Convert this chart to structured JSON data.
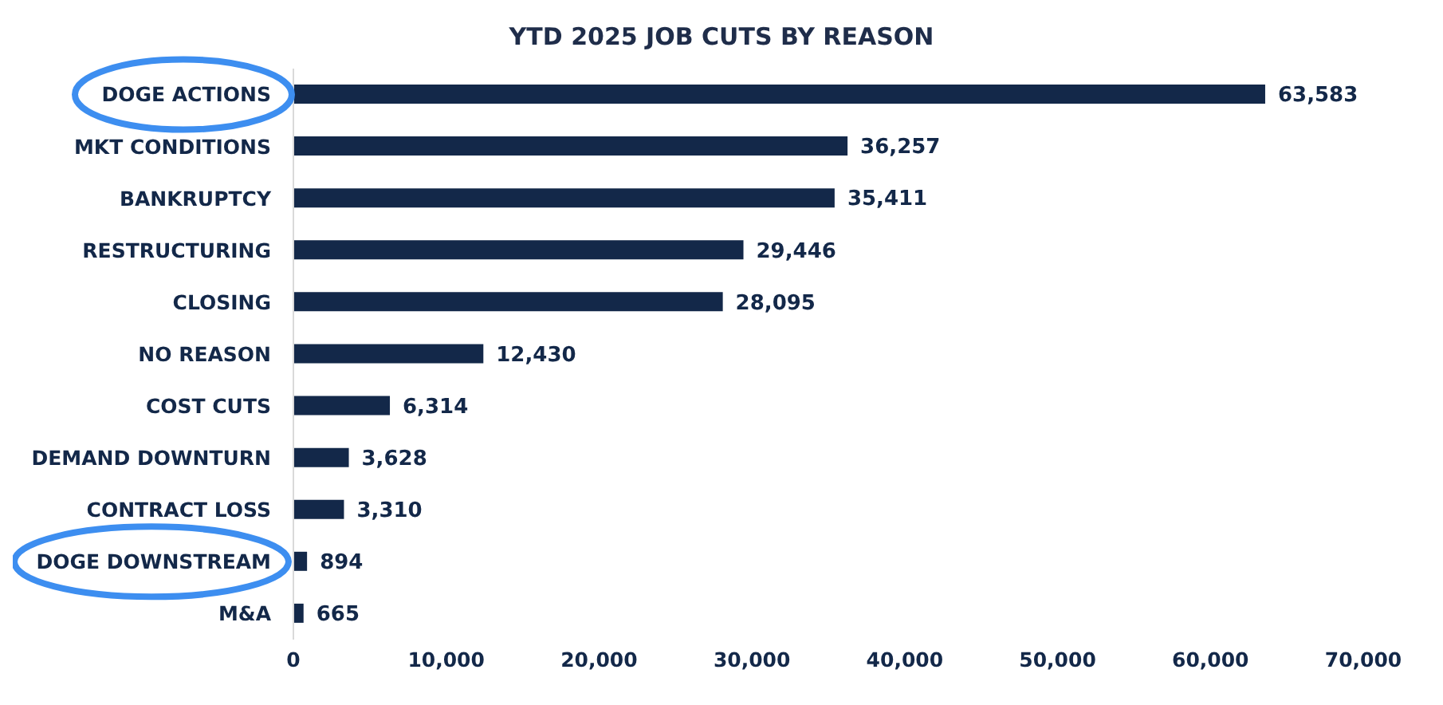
{
  "chart_data": {
    "type": "bar",
    "orientation": "horizontal",
    "title": "YTD 2025 JOB CUTS BY REASON",
    "categories": [
      "DOGE ACTIONS",
      "MKT CONDITIONS",
      "BANKRUPTCY",
      "RESTRUCTURING",
      "CLOSING",
      "NO REASON",
      "COST CUTS",
      "DEMAND DOWNTURN",
      "CONTRACT LOSS",
      "DOGE DOWNSTREAM",
      "M&A"
    ],
    "values": [
      63583,
      36257,
      35411,
      29446,
      28095,
      12430,
      6314,
      3628,
      3310,
      894,
      665
    ],
    "value_labels": [
      "63,583",
      "36,257",
      "35,411",
      "29,446",
      "28,095",
      "12,430",
      "6,314",
      "3,628",
      "3,310",
      "894",
      "665"
    ],
    "color": "#132849",
    "xlim": [
      0,
      70000
    ],
    "xticks": [
      {
        "value": 0,
        "label": "0"
      },
      {
        "value": 10000,
        "label": "10,000"
      },
      {
        "value": 20000,
        "label": "20,000"
      },
      {
        "value": 30000,
        "label": "30,000"
      },
      {
        "value": 40000,
        "label": "40,000"
      },
      {
        "value": 50000,
        "label": "50,000"
      },
      {
        "value": 60000,
        "label": "60,000"
      },
      {
        "value": 70000,
        "label": "70,000"
      }
    ],
    "grid": false,
    "legend": false
  }
}
